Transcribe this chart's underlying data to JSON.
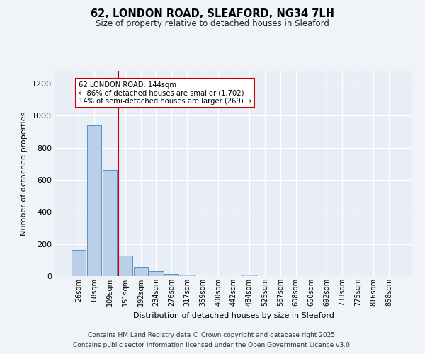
{
  "title_line1": "62, LONDON ROAD, SLEAFORD, NG34 7LH",
  "title_line2": "Size of property relative to detached houses in Sleaford",
  "xlabel": "Distribution of detached houses by size in Sleaford",
  "ylabel": "Number of detached properties",
  "bar_labels": [
    "26sqm",
    "68sqm",
    "109sqm",
    "151sqm",
    "192sqm",
    "234sqm",
    "276sqm",
    "317sqm",
    "359sqm",
    "400sqm",
    "442sqm",
    "484sqm",
    "525sqm",
    "567sqm",
    "608sqm",
    "650sqm",
    "692sqm",
    "733sqm",
    "775sqm",
    "816sqm",
    "858sqm"
  ],
  "bar_values": [
    163,
    940,
    660,
    130,
    57,
    30,
    13,
    8,
    0,
    0,
    0,
    9,
    0,
    0,
    0,
    0,
    0,
    0,
    0,
    0,
    0
  ],
  "bar_color": "#bad0e8",
  "bar_edge_color": "#5b8fc9",
  "background_color": "#e8eef5",
  "fig_background": "#f0f4f8",
  "grid_color": "#ffffff",
  "property_line_x": 2.58,
  "annotation_text": "62 LONDON ROAD: 144sqm\n← 86% of detached houses are smaller (1,702)\n14% of semi-detached houses are larger (269) →",
  "annotation_box_color": "#ffffff",
  "annotation_box_edge": "#cc0000",
  "red_line_color": "#cc0000",
  "ylim": [
    0,
    1280
  ],
  "yticks": [
    0,
    200,
    400,
    600,
    800,
    1000,
    1200
  ],
  "footer_line1": "Contains HM Land Registry data © Crown copyright and database right 2025.",
  "footer_line2": "Contains public sector information licensed under the Open Government Licence v3.0."
}
